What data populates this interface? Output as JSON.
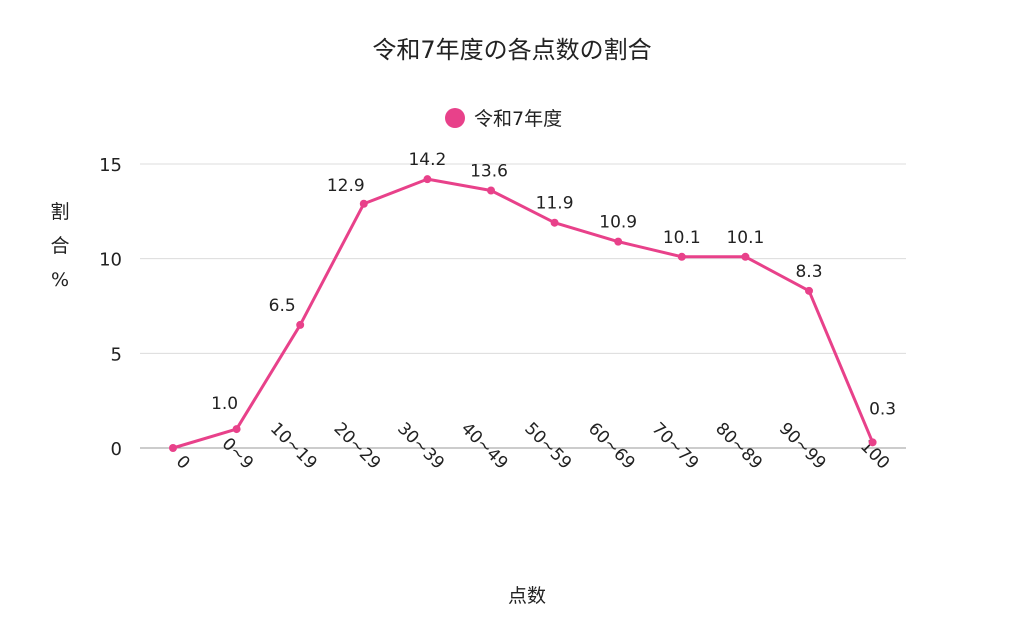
{
  "chart_data": {
    "type": "line",
    "title": "令和7年度の各点数の割合",
    "xlabel": "点数",
    "ylabel": "割合%",
    "ylim": [
      0,
      15
    ],
    "yticks": [
      0,
      5,
      10,
      15
    ],
    "grid": true,
    "legend_position": "top-center",
    "categories": [
      "0",
      "0~9",
      "10~19",
      "20~29",
      "30~39",
      "40~49",
      "50~59",
      "60~69",
      "70~79",
      "80~89",
      "90~99",
      "100"
    ],
    "series": [
      {
        "name": "令和7年度",
        "color": "#e8418a",
        "values": [
          0,
          1.0,
          6.5,
          12.9,
          14.2,
          13.6,
          11.9,
          10.9,
          10.1,
          10.1,
          8.3,
          0.3
        ],
        "labels": [
          "",
          "1.0",
          "6.5",
          "12.9",
          "14.2",
          "13.6",
          "11.9",
          "10.9",
          "10.1",
          "10.1",
          "8.3",
          "0.3"
        ]
      }
    ]
  }
}
